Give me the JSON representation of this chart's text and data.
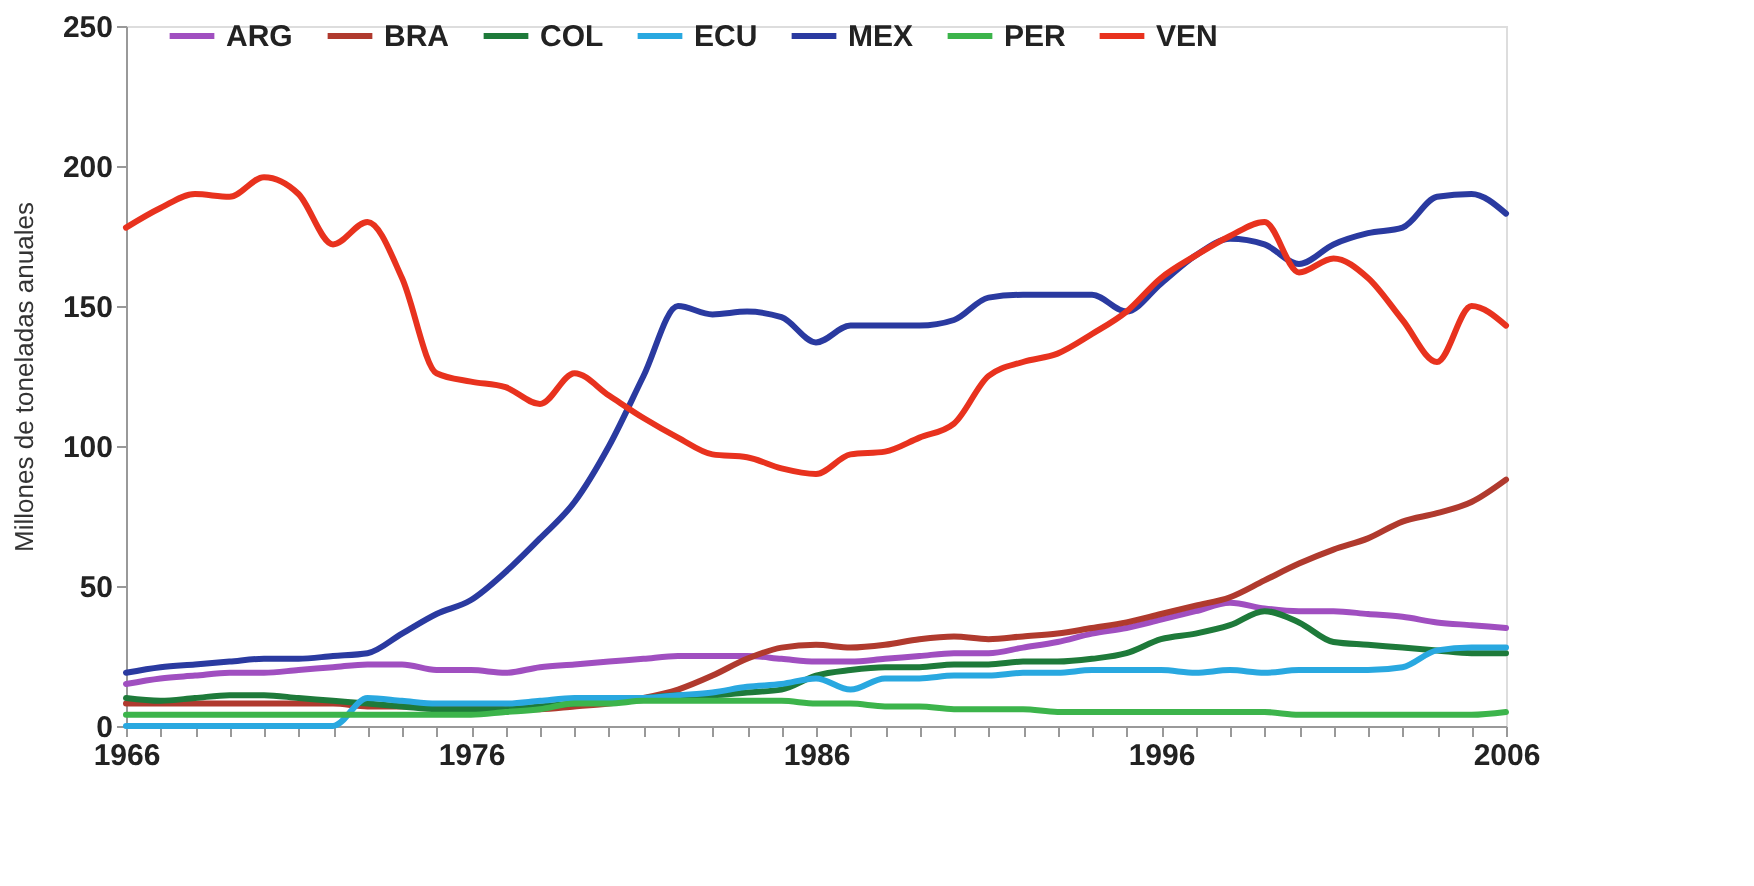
{
  "chart_data": {
    "type": "line",
    "ylabel": "Millones de toneladas anuales",
    "x": [
      1966,
      1967,
      1968,
      1969,
      1970,
      1971,
      1972,
      1973,
      1974,
      1975,
      1976,
      1977,
      1978,
      1979,
      1980,
      1981,
      1982,
      1983,
      1984,
      1985,
      1986,
      1987,
      1988,
      1989,
      1990,
      1991,
      1992,
      1993,
      1994,
      1995,
      1996,
      1997,
      1998,
      1999,
      2000,
      2001,
      2002,
      2003,
      2004,
      2005,
      2006
    ],
    "series": [
      {
        "name": "ARG",
        "color": "#a04fc0",
        "values": [
          15,
          17,
          18,
          19,
          19,
          20,
          21,
          22,
          22,
          20,
          20,
          19,
          21,
          22,
          23,
          24,
          25,
          25,
          25,
          24,
          23,
          23,
          24,
          25,
          26,
          26,
          28,
          30,
          33,
          35,
          38,
          41,
          44,
          42,
          41,
          41,
          40,
          39,
          37,
          36,
          35
        ]
      },
      {
        "name": "BRA",
        "color": "#b03a2e",
        "values": [
          8,
          8,
          8,
          8,
          8,
          8,
          8,
          7,
          7,
          7,
          7,
          6,
          6,
          7,
          8,
          10,
          13,
          18,
          24,
          28,
          29,
          28,
          29,
          31,
          32,
          31,
          32,
          33,
          35,
          37,
          40,
          43,
          46,
          52,
          58,
          63,
          67,
          73,
          76,
          80,
          88
        ]
      },
      {
        "name": "COL",
        "color": "#1e7a3a",
        "values": [
          10,
          9,
          10,
          11,
          11,
          10,
          9,
          8,
          7,
          6,
          6,
          6,
          7,
          8,
          9,
          10,
          11,
          11,
          12,
          13,
          18,
          20,
          21,
          21,
          22,
          22,
          23,
          23,
          24,
          26,
          31,
          33,
          36,
          41,
          37,
          30,
          29,
          28,
          27,
          26,
          26
        ]
      },
      {
        "name": "ECU",
        "color": "#29a8e0",
        "values": [
          0,
          0,
          0,
          0,
          0,
          0,
          0,
          10,
          9,
          8,
          8,
          8,
          9,
          10,
          10,
          10,
          11,
          12,
          14,
          15,
          17,
          13,
          17,
          17,
          18,
          18,
          19,
          19,
          20,
          20,
          20,
          19,
          20,
          19,
          20,
          20,
          20,
          21,
          27,
          28,
          28
        ]
      },
      {
        "name": "MEX",
        "color": "#2a3aa0",
        "values": [
          19,
          21,
          22,
          23,
          24,
          24,
          25,
          26,
          33,
          40,
          45,
          55,
          67,
          80,
          100,
          125,
          150,
          147,
          148,
          146,
          137,
          143,
          143,
          143,
          145,
          153,
          154,
          154,
          154,
          148,
          158,
          168,
          174,
          172,
          165,
          172,
          176,
          178,
          189,
          190,
          183
        ]
      },
      {
        "name": "PER",
        "color": "#3cb44b",
        "values": [
          4,
          4,
          4,
          4,
          4,
          4,
          4,
          4,
          4,
          4,
          4,
          5,
          6,
          8,
          8,
          9,
          9,
          9,
          9,
          9,
          8,
          8,
          7,
          7,
          6,
          6,
          6,
          5,
          5,
          5,
          5,
          5,
          5,
          5,
          4,
          4,
          4,
          4,
          4,
          4,
          5
        ]
      },
      {
        "name": "VEN",
        "color": "#e8321e",
        "values": [
          178,
          185,
          190,
          189,
          196,
          190,
          172,
          180,
          160,
          126,
          123,
          121,
          115,
          126,
          118,
          110,
          103,
          97,
          96,
          92,
          90,
          97,
          98,
          103,
          108,
          125,
          130,
          133,
          140,
          148,
          160,
          168,
          175,
          180,
          162,
          167,
          160,
          145,
          130,
          150,
          143
        ]
      }
    ],
    "xlim": [
      1966,
      2006
    ],
    "xticks": [
      1966,
      {
        "value": 1967,
        "label": null
      },
      {
        "value": 1968,
        "label": null
      },
      {
        "value": 1969,
        "label": null
      },
      {
        "value": 1970,
        "label": null
      },
      {
        "value": 1971,
        "label": null
      },
      {
        "value": 1972,
        "label": null
      },
      {
        "value": 1973,
        "label": null
      },
      {
        "value": 1974,
        "label": null
      },
      {
        "value": 1975,
        "label": null
      },
      1976,
      {
        "value": 1977,
        "label": null
      },
      {
        "value": 1978,
        "label": null
      },
      {
        "value": 1979,
        "label": null
      },
      {
        "value": 1980,
        "label": null
      },
      {
        "value": 1981,
        "label": null
      },
      {
        "value": 1982,
        "label": null
      },
      {
        "value": 1983,
        "label": null
      },
      {
        "value": 1984,
        "label": null
      },
      {
        "value": 1985,
        "label": null
      },
      1986,
      {
        "value": 1987,
        "label": null
      },
      {
        "value": 1988,
        "label": null
      },
      {
        "value": 1989,
        "label": null
      },
      {
        "value": 1990,
        "label": null
      },
      {
        "value": 1991,
        "label": null
      },
      {
        "value": 1992,
        "label": null
      },
      {
        "value": 1993,
        "label": null
      },
      {
        "value": 1994,
        "label": null
      },
      {
        "value": 1995,
        "label": null
      },
      1996,
      {
        "value": 1997,
        "label": null
      },
      {
        "value": 1998,
        "label": null
      },
      {
        "value": 1999,
        "label": null
      },
      {
        "value": 2000,
        "label": null
      },
      {
        "value": 2001,
        "label": null
      },
      {
        "value": 2002,
        "label": null
      },
      {
        "value": 2003,
        "label": null
      },
      {
        "value": 2004,
        "label": null
      },
      {
        "value": 2005,
        "label": null
      },
      2006
    ],
    "ylim": [
      0,
      250
    ],
    "yticks": [
      0,
      50,
      100,
      150,
      200,
      250
    ],
    "grid": false,
    "legend": "top",
    "marker": "none",
    "line_style": "solid"
  }
}
